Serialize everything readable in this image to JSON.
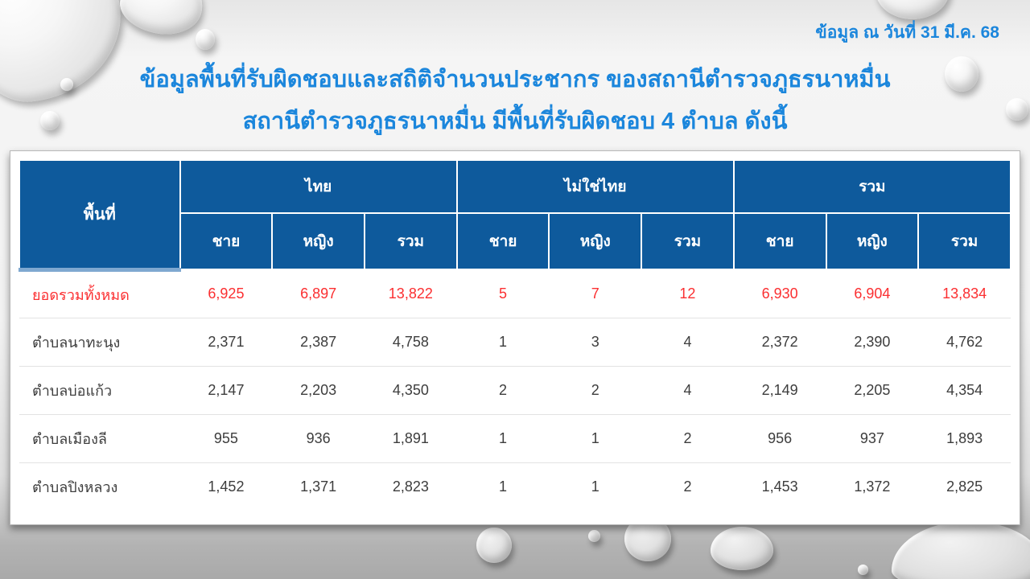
{
  "slide": {
    "date_note": "ข้อมูล ณ วันที่ 31 มี.ค. 68",
    "title_line1": "ข้อมูลพื้นที่รับผิดชอบและสถิติจำนวนประชากร ของสถานีตำรวจภูธรนาหมื่น",
    "title_line2": "สถานีตำรวจภูธรนาหมื่น มีพื้นที่รับผิดชอบ 4 ตำบล ดังนี้"
  },
  "colors": {
    "header_bg": "#0E5A9C",
    "title_blue": "#1B86DC",
    "total_red": "#FB2F31",
    "body_text": "#3D3D3D"
  },
  "table": {
    "area_header": "พื้นที่",
    "groups": [
      {
        "label": "ไทย"
      },
      {
        "label": "ไม่ใช่ไทย"
      },
      {
        "label": "รวม"
      }
    ],
    "sub_headers": [
      "ชาย",
      "หญิง",
      "รวม"
    ],
    "rows": [
      {
        "area": "ยอดรวมทั้งหมด",
        "is_total": true,
        "values": [
          "6,925",
          "6,897",
          "13,822",
          "5",
          "7",
          "12",
          "6,930",
          "6,904",
          "13,834"
        ]
      },
      {
        "area": "ตำบลนาทะนุง",
        "is_total": false,
        "values": [
          "2,371",
          "2,387",
          "4,758",
          "1",
          "3",
          "4",
          "2,372",
          "2,390",
          "4,762"
        ]
      },
      {
        "area": "ตำบลบ่อแก้ว",
        "is_total": false,
        "values": [
          "2,147",
          "2,203",
          "4,350",
          "2",
          "2",
          "4",
          "2,149",
          "2,205",
          "4,354"
        ]
      },
      {
        "area": "ตำบลเมืองลี",
        "is_total": false,
        "values": [
          "955",
          "936",
          "1,891",
          "1",
          "1",
          "2",
          "956",
          "937",
          "1,893"
        ]
      },
      {
        "area": "ตำบลปิงหลวง",
        "is_total": false,
        "values": [
          "1,452",
          "1,371",
          "2,823",
          "1",
          "1",
          "2",
          "1,453",
          "1,372",
          "2,825"
        ]
      }
    ]
  }
}
